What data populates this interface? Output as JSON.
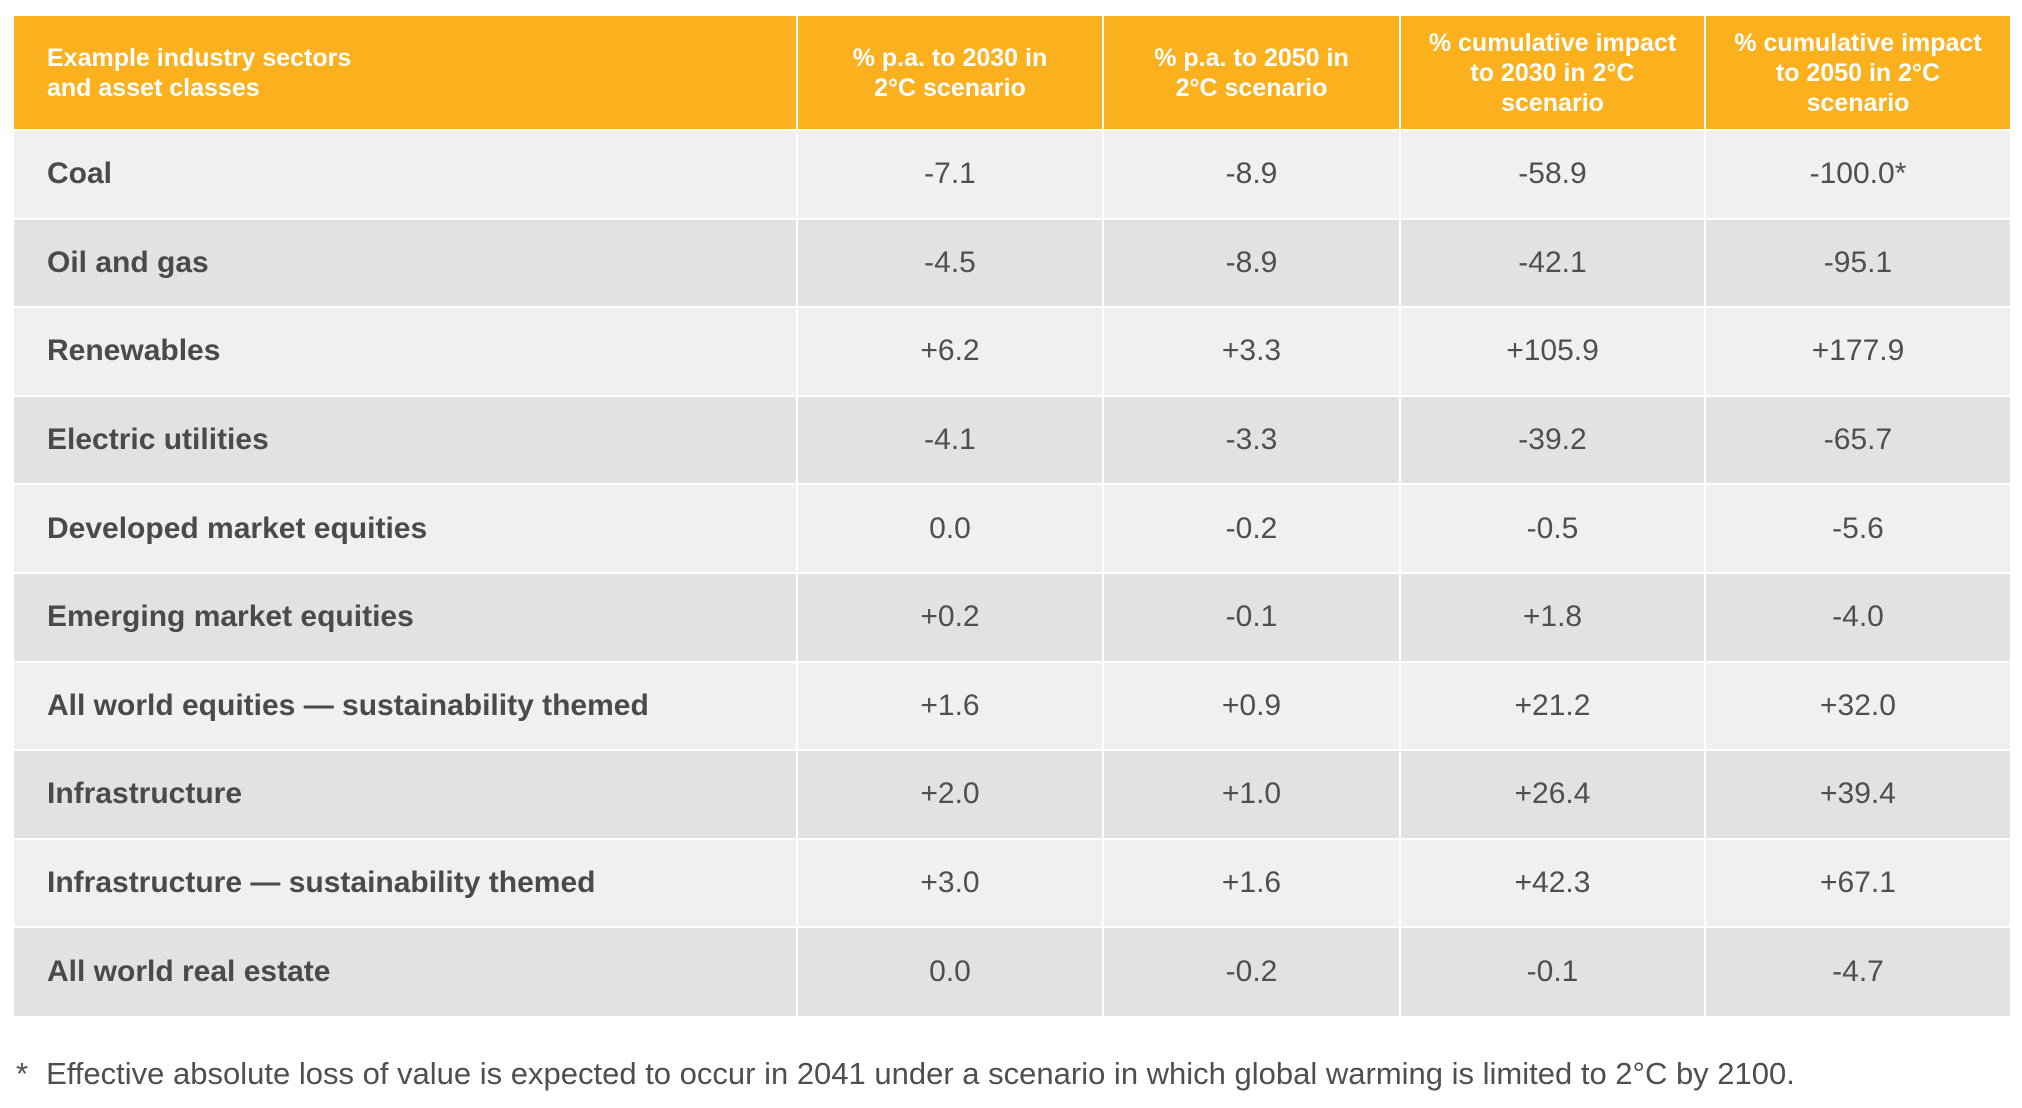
{
  "chart_data": {
    "type": "table",
    "columns": [
      [
        "Example industry sectors",
        "and asset classes"
      ],
      [
        "% p.a. to 2030 in",
        "2°C scenario"
      ],
      [
        "% p.a. to 2050 in",
        "2°C scenario"
      ],
      [
        "% cumulative impact",
        "to 2030 in 2°C",
        "scenario"
      ],
      [
        "% cumulative impact",
        "to 2050 in 2°C",
        "scenario"
      ]
    ],
    "rows": [
      [
        "Coal",
        "-7.1",
        "-8.9",
        "-58.9",
        "-100.0*"
      ],
      [
        "Oil and gas",
        "-4.5",
        "-8.9",
        "-42.1",
        "-95.1"
      ],
      [
        "Renewables",
        "+6.2",
        "+3.3",
        "+105.9",
        "+177.9"
      ],
      [
        "Electric utilities",
        "-4.1",
        "-3.3",
        "-39.2",
        "-65.7"
      ],
      [
        "Developed market equities",
        "0.0",
        "-0.2",
        "-0.5",
        "-5.6"
      ],
      [
        "Emerging market equities",
        "+0.2",
        "-0.1",
        "+1.8",
        "-4.0"
      ],
      [
        "All world equities — sustainability themed",
        "+1.6",
        "+0.9",
        "+21.2",
        "+32.0"
      ],
      [
        "Infrastructure",
        "+2.0",
        "+1.0",
        "+26.4",
        "+39.4"
      ],
      [
        "Infrastructure — sustainability themed",
        "+3.0",
        "+1.6",
        "+42.3",
        "+67.1"
      ],
      [
        "All world real estate",
        "0.0",
        "-0.2",
        "-0.1",
        "-4.7"
      ]
    ],
    "footnote": {
      "marker": "*",
      "text": "Effective absolute loss of value is expected to occur in 2041 under a scenario in which global warming is limited to 2°C by 2100."
    }
  },
  "colors": {
    "header_bg": "#fbb01e",
    "header_text": "#ffffff",
    "row_light": "#f0f0f0",
    "row_dark": "#e1e2e4",
    "body_text": "#4f4f4f"
  }
}
